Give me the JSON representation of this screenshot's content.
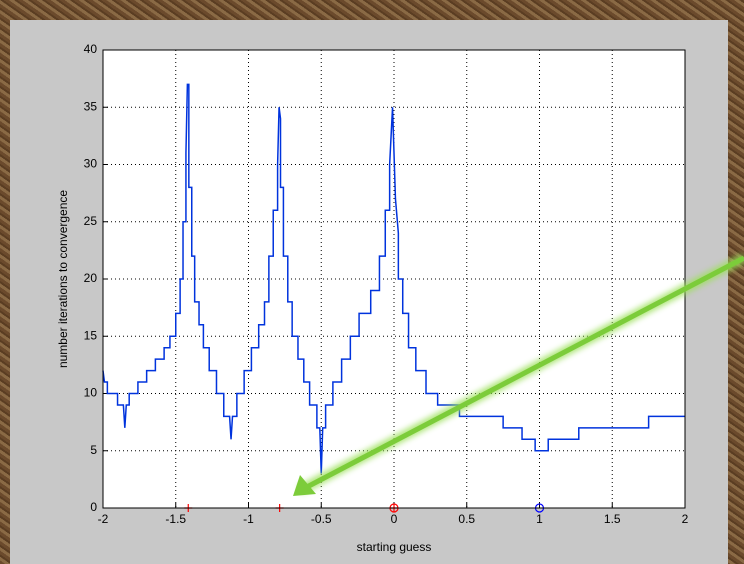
{
  "chart_data": {
    "type": "line",
    "xlabel": "starting guess",
    "ylabel": "number iterations to convergence",
    "xlim": [
      -2,
      2
    ],
    "xticks": [
      -2,
      -1.5,
      -1,
      -0.5,
      0,
      0.5,
      1,
      1.5,
      2
    ],
    "ylim": [
      0,
      40
    ],
    "yticks": [
      0,
      5,
      10,
      15,
      20,
      25,
      30,
      35,
      40
    ],
    "grid": true,
    "series": [
      {
        "color": "#0033dd",
        "x": [
          -2,
          -1.99,
          -1.97,
          -1.97,
          -1.9,
          -1.9,
          -1.86,
          -1.85,
          -1.84,
          -1.82,
          -1.82,
          -1.76,
          -1.76,
          -1.7,
          -1.7,
          -1.64,
          -1.64,
          -1.58,
          -1.58,
          -1.54,
          -1.54,
          -1.5,
          -1.5,
          -1.47,
          -1.47,
          -1.45,
          -1.45,
          -1.43,
          -1.43,
          -1.42,
          -1.41,
          -1.41,
          -1.39,
          -1.39,
          -1.37,
          -1.37,
          -1.34,
          -1.34,
          -1.31,
          -1.31,
          -1.27,
          -1.27,
          -1.22,
          -1.22,
          -1.17,
          -1.17,
          -1.13,
          -1.12,
          -1.11,
          -1.08,
          -1.08,
          -1.03,
          -1.03,
          -0.98,
          -0.98,
          -0.93,
          -0.93,
          -0.89,
          -0.89,
          -0.86,
          -0.86,
          -0.83,
          -0.83,
          -0.8,
          -0.8,
          -0.79,
          -0.78,
          -0.78,
          -0.76,
          -0.76,
          -0.73,
          -0.73,
          -0.7,
          -0.7,
          -0.66,
          -0.66,
          -0.62,
          -0.62,
          -0.58,
          -0.58,
          -0.53,
          -0.53,
          -0.51,
          -0.5,
          -0.49,
          -0.47,
          -0.47,
          -0.42,
          -0.42,
          -0.36,
          -0.36,
          -0.3,
          -0.3,
          -0.24,
          -0.24,
          -0.16,
          -0.16,
          -0.1,
          -0.1,
          -0.06,
          -0.06,
          -0.03,
          -0.03,
          -0.01,
          0.01,
          0.03,
          0.03,
          0.06,
          0.06,
          0.1,
          0.1,
          0.15,
          0.15,
          0.22,
          0.22,
          0.3,
          0.3,
          0.45,
          0.45,
          0.75,
          0.75,
          0.88,
          0.88,
          0.97,
          0.97,
          1.06,
          1.06,
          1.27,
          1.27,
          1.75,
          1.75,
          2
        ],
        "values": [
          12,
          11,
          11,
          10,
          10,
          9,
          9,
          7,
          9,
          9,
          10,
          10,
          11,
          11,
          12,
          12,
          13,
          13,
          14,
          14,
          15,
          15,
          17,
          17,
          20,
          20,
          25,
          25,
          31,
          37,
          37,
          28,
          28,
          22,
          22,
          18,
          18,
          16,
          16,
          14,
          14,
          12,
          12,
          10,
          10,
          8,
          8,
          6,
          8,
          8,
          10,
          10,
          12,
          12,
          14,
          14,
          16,
          16,
          18,
          18,
          22,
          22,
          26,
          26,
          30,
          35,
          34,
          28,
          28,
          22,
          22,
          18,
          18,
          15,
          15,
          13,
          13,
          11,
          11,
          9,
          9,
          7,
          7,
          3,
          7,
          7,
          9,
          9,
          11,
          11,
          13,
          13,
          15,
          15,
          17,
          17,
          19,
          19,
          22,
          22,
          26,
          26,
          30,
          35,
          27,
          24,
          20,
          20,
          17,
          17,
          14,
          14,
          12,
          12,
          10,
          10,
          9,
          9,
          8,
          8,
          7,
          7,
          6,
          6,
          5,
          5,
          6,
          6,
          7,
          7,
          8,
          8
        ]
      },
      {
        "color": "#ff0000",
        "marker": "+",
        "x": [
          -1.414,
          -0.786,
          0
        ],
        "values": [
          0,
          0,
          0
        ]
      },
      {
        "color": "#ff0000",
        "marker": "o",
        "x": [
          0
        ],
        "values": [
          0
        ]
      },
      {
        "color": "#0000ff",
        "marker": "o",
        "x": [
          1
        ],
        "values": [
          0
        ]
      }
    ]
  }
}
